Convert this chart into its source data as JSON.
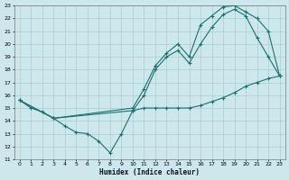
{
  "xlabel": "Humidex (Indice chaleur)",
  "bg_color": "#cce8ec",
  "grid_color": "#aacccc",
  "line_color": "#1a7070",
  "xlim": [
    -0.5,
    23.5
  ],
  "ylim": [
    11,
    23
  ],
  "xticks": [
    0,
    1,
    2,
    3,
    4,
    5,
    6,
    7,
    8,
    9,
    10,
    11,
    12,
    13,
    14,
    15,
    16,
    17,
    18,
    19,
    20,
    21,
    22,
    23
  ],
  "yticks": [
    11,
    12,
    13,
    14,
    15,
    16,
    17,
    18,
    19,
    20,
    21,
    22,
    23
  ],
  "line1_x": [
    0,
    1,
    2,
    3,
    4,
    5,
    6,
    7,
    8,
    9,
    10,
    11,
    12,
    13,
    14,
    15,
    16,
    17,
    18,
    19,
    20,
    21,
    22,
    23
  ],
  "line1_y": [
    15.6,
    15.0,
    14.7,
    14.2,
    13.6,
    13.1,
    13.0,
    12.4,
    11.5,
    13.0,
    14.8,
    15.0,
    15.0,
    15.0,
    15.0,
    15.0,
    15.2,
    15.5,
    15.8,
    16.2,
    16.7,
    17.0,
    17.3,
    17.5
  ],
  "line2_x": [
    0,
    3,
    10,
    11,
    12,
    13,
    14,
    15,
    16,
    17,
    18,
    19,
    20,
    21,
    22,
    23
  ],
  "line2_y": [
    15.6,
    14.2,
    15.0,
    16.5,
    18.3,
    19.3,
    20.0,
    19.0,
    21.5,
    22.2,
    22.9,
    23.0,
    22.5,
    22.0,
    21.0,
    17.5
  ],
  "line3_x": [
    0,
    3,
    10,
    11,
    12,
    13,
    14,
    15,
    16,
    17,
    18,
    19,
    20,
    21,
    22,
    23
  ],
  "line3_y": [
    15.6,
    14.2,
    14.8,
    16.0,
    18.0,
    19.0,
    19.5,
    18.5,
    20.0,
    21.3,
    22.3,
    22.7,
    22.2,
    20.5,
    19.0,
    17.5
  ]
}
